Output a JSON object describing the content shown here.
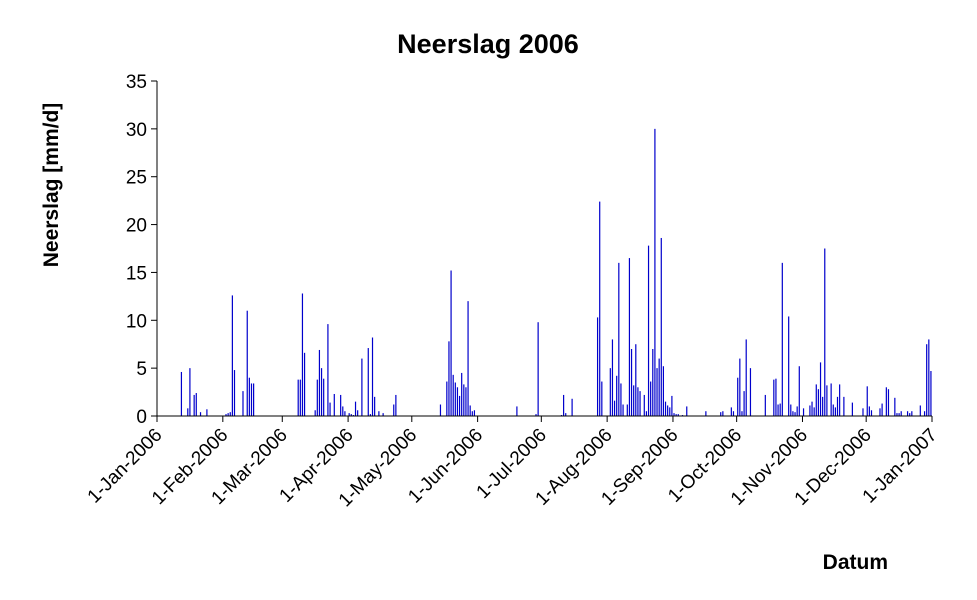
{
  "chart_data": {
    "type": "bar",
    "title": "Neerslag 2006",
    "xlabel": "Datum",
    "ylabel": "Neerslag [mm/d]",
    "ylim": [
      0,
      35
    ],
    "yticks": [
      0,
      5,
      10,
      15,
      20,
      25,
      30,
      35
    ],
    "xlim": [
      "2006-01-01",
      "2007-01-01"
    ],
    "xticks": [
      "1-Jan-2006",
      "1-Feb-2006",
      "1-Mar-2006",
      "1-Apr-2006",
      "1-May-2006",
      "1-Jun-2006",
      "1-Jul-2006",
      "1-Aug-2006",
      "1-Sep-2006",
      "1-Oct-2006",
      "1-Nov-2006",
      "1-Dec-2006",
      "1-Jan-2007"
    ],
    "grid": false,
    "legend": "none",
    "bar_color": "#0000cc",
    "series": [
      {
        "x": [
          "2006-01-12",
          "2006-01-15",
          "2006-01-16",
          "2006-01-18",
          "2006-01-19",
          "2006-01-21",
          "2006-01-24",
          "2006-02-02",
          "2006-02-03",
          "2006-02-04",
          "2006-02-05",
          "2006-02-06",
          "2006-02-10",
          "2006-02-12",
          "2006-02-13",
          "2006-02-14",
          "2006-02-15",
          "2006-03-08",
          "2006-03-09",
          "2006-03-10",
          "2006-03-11",
          "2006-03-16",
          "2006-03-17",
          "2006-03-18",
          "2006-03-19",
          "2006-03-20",
          "2006-03-22",
          "2006-03-23",
          "2006-03-25",
          "2006-03-28",
          "2006-03-29",
          "2006-03-30",
          "2006-04-01",
          "2006-04-02",
          "2006-04-03",
          "2006-04-04",
          "2006-04-05",
          "2006-04-07",
          "2006-04-10",
          "2006-04-11",
          "2006-04-12",
          "2006-04-13",
          "2006-04-15",
          "2006-04-17",
          "2006-04-22",
          "2006-04-23",
          "2006-05-14",
          "2006-05-17",
          "2006-05-18",
          "2006-05-19",
          "2006-05-20",
          "2006-05-21",
          "2006-05-22",
          "2006-05-23",
          "2006-05-24",
          "2006-05-25",
          "2006-05-26",
          "2006-05-27",
          "2006-05-28",
          "2006-05-29",
          "2006-05-30",
          "2006-06-19",
          "2006-06-28",
          "2006-06-29",
          "2006-07-10",
          "2006-07-11",
          "2006-07-12",
          "2006-07-15",
          "2006-07-27",
          "2006-07-28",
          "2006-07-29",
          "2006-08-02",
          "2006-08-03",
          "2006-08-04",
          "2006-08-05",
          "2006-08-06",
          "2006-08-07",
          "2006-08-08",
          "2006-08-10",
          "2006-08-11",
          "2006-08-12",
          "2006-08-13",
          "2006-08-14",
          "2006-08-15",
          "2006-08-16",
          "2006-08-18",
          "2006-08-19",
          "2006-08-20",
          "2006-08-21",
          "2006-08-22",
          "2006-08-23",
          "2006-08-24",
          "2006-08-25",
          "2006-08-26",
          "2006-08-27",
          "2006-08-28",
          "2006-08-29",
          "2006-08-30",
          "2006-08-31",
          "2006-09-01",
          "2006-09-02",
          "2006-09-03",
          "2006-09-05",
          "2006-09-07",
          "2006-09-16",
          "2006-09-23",
          "2006-09-24",
          "2006-09-28",
          "2006-09-29",
          "2006-10-01",
          "2006-10-02",
          "2006-10-03",
          "2006-10-04",
          "2006-10-05",
          "2006-10-07",
          "2006-10-14",
          "2006-10-18",
          "2006-10-19",
          "2006-10-20",
          "2006-10-21",
          "2006-10-22",
          "2006-10-25",
          "2006-10-26",
          "2006-10-27",
          "2006-10-28",
          "2006-10-29",
          "2006-10-30",
          "2006-11-01",
          "2006-11-04",
          "2006-11-05",
          "2006-11-06",
          "2006-11-07",
          "2006-11-08",
          "2006-11-09",
          "2006-11-10",
          "2006-11-11",
          "2006-11-12",
          "2006-11-14",
          "2006-11-15",
          "2006-11-16",
          "2006-11-17",
          "2006-11-18",
          "2006-11-20",
          "2006-11-24",
          "2006-11-29",
          "2006-12-01",
          "2006-12-02",
          "2006-12-03",
          "2006-12-07",
          "2006-12-08",
          "2006-12-10",
          "2006-12-11",
          "2006-12-14",
          "2006-12-15",
          "2006-12-16",
          "2006-12-17",
          "2006-12-20",
          "2006-12-21",
          "2006-12-22",
          "2006-12-26",
          "2006-12-28",
          "2006-12-29",
          "2006-12-30",
          "2006-12-31"
        ],
        "values": [
          4.6,
          0.8,
          5.0,
          2.2,
          2.4,
          0.4,
          0.7,
          0.2,
          0.3,
          0.4,
          12.6,
          4.8,
          2.6,
          11.0,
          4.0,
          3.4,
          3.4,
          3.8,
          3.8,
          12.8,
          6.6,
          0.6,
          3.8,
          6.9,
          5.0,
          3.9,
          9.6,
          1.4,
          2.3,
          2.2,
          1.0,
          0.5,
          0.3,
          0.2,
          0.1,
          1.5,
          0.6,
          6.0,
          7.1,
          0.2,
          8.2,
          2.0,
          0.5,
          0.3,
          1.2,
          2.2,
          1.2,
          3.6,
          7.8,
          15.2,
          4.3,
          3.5,
          3.0,
          2.1,
          4.5,
          3.3,
          3.0,
          12.0,
          1.1,
          0.5,
          0.6,
          1.0,
          0.2,
          9.8,
          0.1,
          2.2,
          0.3,
          1.8,
          10.3,
          22.4,
          3.6,
          5.0,
          8.0,
          1.6,
          4.2,
          16.0,
          3.4,
          1.2,
          1.2,
          16.5,
          7.0,
          3.2,
          7.5,
          3.0,
          2.6,
          2.2,
          0.5,
          17.8,
          3.6,
          7.0,
          30.0,
          5.0,
          6.0,
          18.6,
          5.2,
          1.5,
          1.1,
          0.9,
          2.1,
          0.3,
          0.2,
          0.2,
          0.1,
          1.0,
          0.5,
          0.4,
          0.5,
          0.9,
          0.5,
          4.0,
          6.0,
          0.5,
          2.6,
          8.0,
          5.0,
          2.2,
          3.8,
          3.9,
          1.2,
          1.3,
          16.0,
          10.4,
          1.2,
          0.5,
          0.4,
          1.0,
          5.2,
          0.8,
          1.1,
          1.5,
          0.9,
          3.3,
          2.8,
          5.6,
          2.0,
          17.5,
          3.2,
          3.4,
          1.2,
          0.9,
          2.0,
          3.3,
          2.0,
          1.4,
          0.8,
          3.1,
          1.0,
          0.6,
          0.8,
          1.3,
          3.0,
          2.8,
          1.9,
          0.3,
          0.3,
          0.5,
          0.5,
          0.3,
          0.5,
          1.1,
          0.5,
          7.5,
          8.0,
          4.7
        ]
      }
    ]
  }
}
